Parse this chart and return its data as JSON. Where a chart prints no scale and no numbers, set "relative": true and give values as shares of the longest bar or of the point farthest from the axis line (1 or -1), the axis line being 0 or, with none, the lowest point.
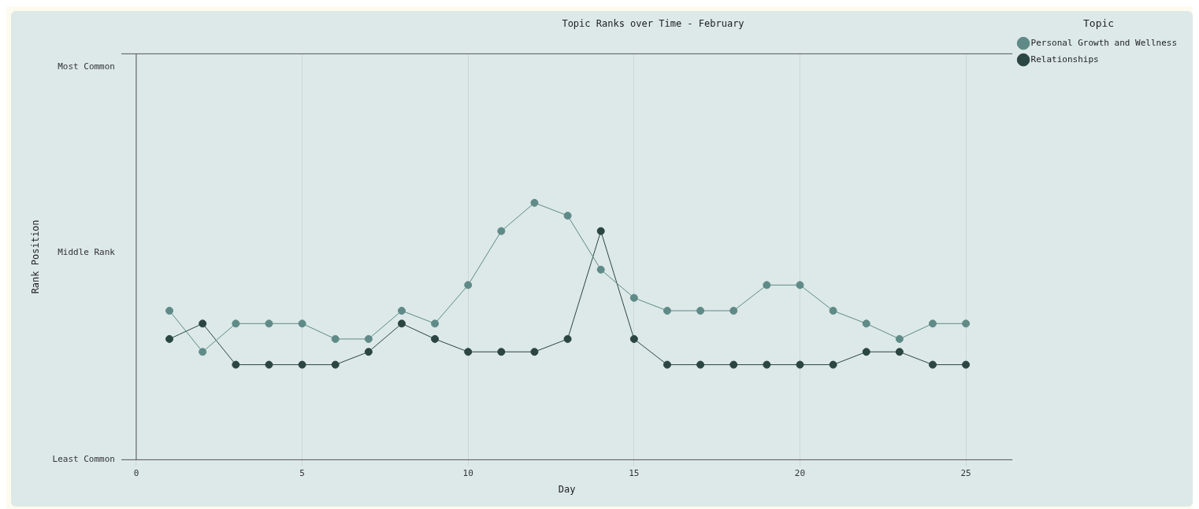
{
  "chart_data": {
    "type": "line",
    "title": "Topic Ranks over Time - February",
    "xlabel": "Day",
    "legend_title": "Topic",
    "relative": true,
    "x": [
      1,
      2,
      3,
      4,
      5,
      6,
      7,
      8,
      9,
      10,
      11,
      12,
      13,
      14,
      15,
      16,
      17,
      18,
      19,
      20,
      21,
      22,
      23,
      24,
      25
    ],
    "series": [
      {
        "name": "Personal Growth and Wellness",
        "color": "#5f8a87",
        "values": [
          0.58,
          0.42,
          0.53,
          0.53,
          0.53,
          0.47,
          0.47,
          0.58,
          0.53,
          0.68,
          0.89,
          1,
          0.95,
          0.74,
          0.63,
          0.58,
          0.58,
          0.58,
          0.68,
          0.68,
          0.58,
          0.53,
          0.47,
          0.53,
          0.53
        ]
      },
      {
        "name": "Relationships",
        "color": "#2b4543",
        "values": [
          0.47,
          0.53,
          0.37,
          0.37,
          0.37,
          0.37,
          0.42,
          0.53,
          0.47,
          0.42,
          0.42,
          0.42,
          0.47,
          0.89,
          0.47,
          0.37,
          0.37,
          0.37,
          0.37,
          0.37,
          0.37,
          0.42,
          0.42,
          0.37,
          0.37
        ]
      }
    ],
    "annotations": [
      "Most Common",
      "Middle Rank",
      "Least Common",
      "Rank Position"
    ],
    "xlim": [
      -0.45,
      26.4
    ],
    "xticks": [
      0,
      5,
      10,
      15,
      20,
      25
    ],
    "grid": "x",
    "legend": "top right",
    "marker": "circle",
    "line_style": "solid"
  }
}
